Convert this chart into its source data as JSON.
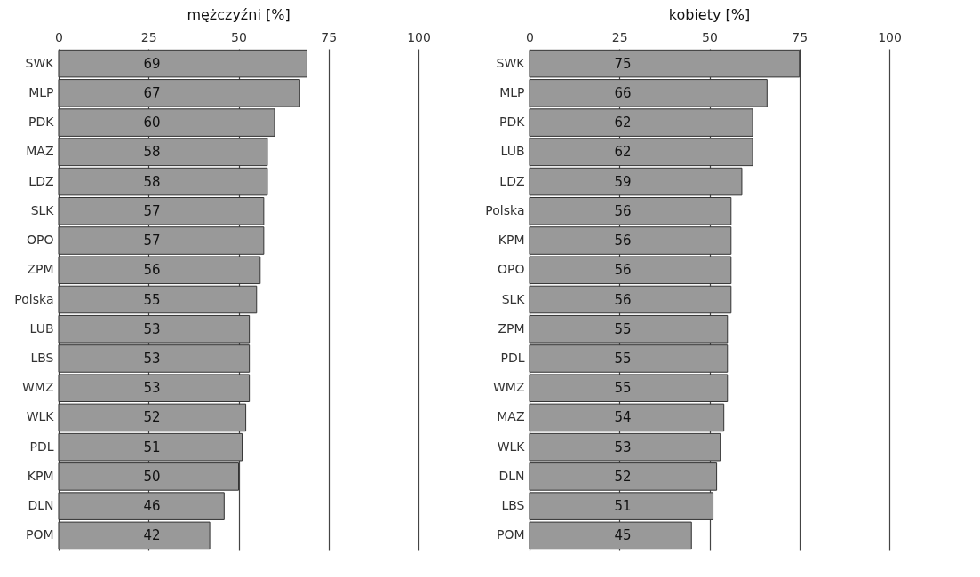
{
  "chart_data": [
    {
      "type": "bar",
      "orientation": "horizontal",
      "title": "mężczyźni [%]",
      "categories": [
        "SWK",
        "MLP",
        "PDK",
        "MAZ",
        "LDZ",
        "SLK",
        "OPO",
        "ZPM",
        "Polska",
        "LUB",
        "LBS",
        "WMZ",
        "WLK",
        "PDL",
        "KPM",
        "DLN",
        "POM"
      ],
      "values": [
        69,
        67,
        60,
        58,
        58,
        57,
        57,
        56,
        55,
        53,
        53,
        53,
        52,
        51,
        50,
        46,
        42
      ],
      "color": "#999999",
      "xlim": [
        0,
        100
      ],
      "xticks": [
        0,
        25,
        50,
        75,
        100
      ],
      "grid": "x",
      "data_labels": true
    },
    {
      "type": "bar",
      "orientation": "horizontal",
      "title": "kobiety [%]",
      "categories": [
        "SWK",
        "MLP",
        "PDK",
        "LUB",
        "LDZ",
        "Polska",
        "KPM",
        "OPO",
        "SLK",
        "ZPM",
        "PDL",
        "WMZ",
        "MAZ",
        "WLK",
        "DLN",
        "LBS",
        "POM"
      ],
      "values": [
        75,
        66,
        62,
        62,
        59,
        56,
        56,
        56,
        56,
        55,
        55,
        55,
        54,
        53,
        52,
        51,
        45
      ],
      "color": "#999999",
      "xlim": [
        0,
        100
      ],
      "xticks": [
        0,
        25,
        50,
        75,
        100
      ],
      "grid": "x",
      "data_labels": true
    }
  ]
}
